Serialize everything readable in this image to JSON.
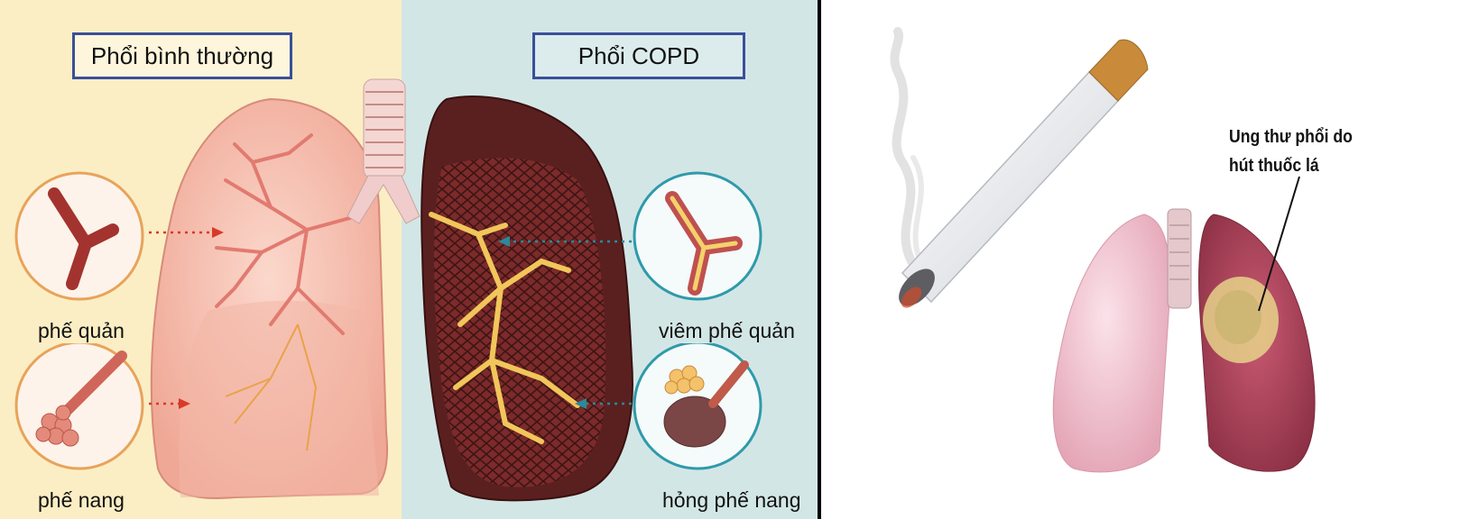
{
  "left": {
    "title_normal": "Phổi bình thường",
    "title_copd": "Phổi COPD",
    "label_bronchi": "phế quản",
    "label_alveoli": "phế nang",
    "label_bronchitis": "viêm phế quản",
    "label_damaged_alveoli": "hỏng phế nang"
  },
  "right": {
    "cancer_line1": "Ung thư phổi do",
    "cancer_line2": "hút thuốc lá"
  },
  "colors": {
    "normal_bg": "#fbeec4",
    "copd_bg": "#d3e6e6",
    "title_border": "#3a4f9a",
    "arrow_red": "#d83a2a",
    "arrow_teal": "#2a8a9a"
  }
}
